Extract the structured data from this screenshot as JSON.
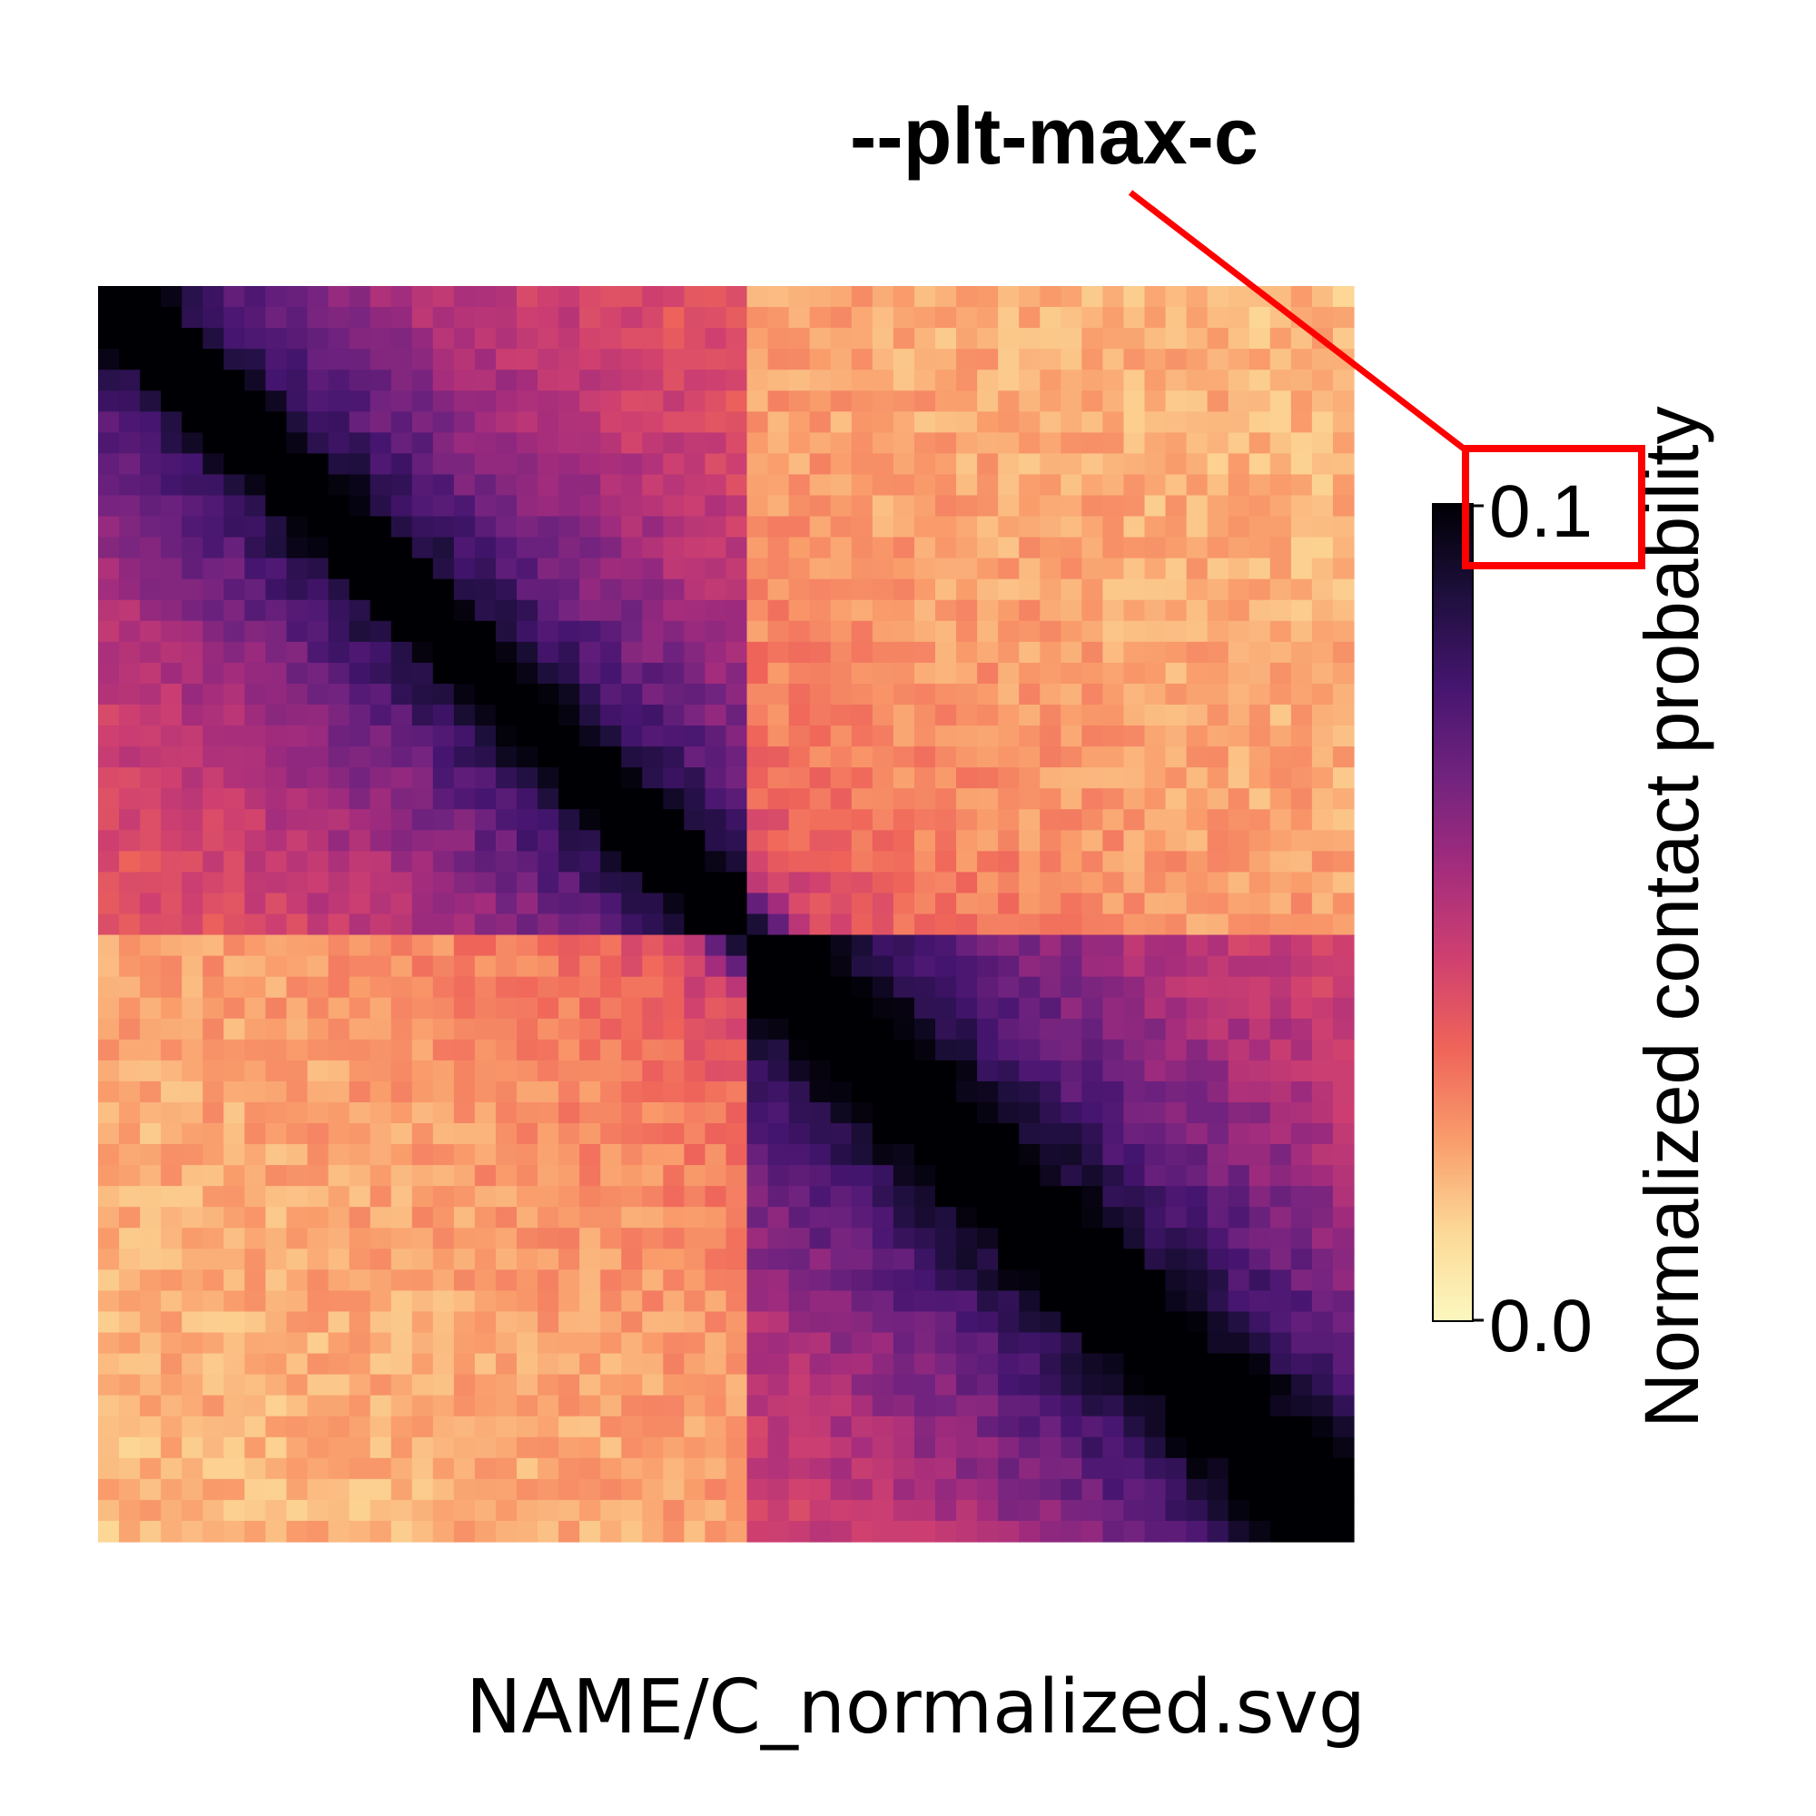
{
  "chart_data": {
    "type": "heatmap",
    "title": "",
    "matrix_size": 60,
    "colormap": "magma_r",
    "colormap_stops": [
      "#fcf8bf",
      "#fcd896",
      "#f99c6b",
      "#ef6459",
      "#cf4070",
      "#a32c7d",
      "#71237f",
      "#45156f",
      "#1e0f3d",
      "#000004"
    ],
    "value_range": [
      0.0,
      0.1
    ],
    "domains": [
      {
        "start": 0,
        "end": 31,
        "strength": 0.045
      },
      {
        "start": 31,
        "end": 60,
        "strength": 0.055
      }
    ],
    "diagonal_value": 0.1,
    "colorbar": {
      "label": "Normalized contact probability",
      "ticks": [
        "0.0",
        "0.1"
      ]
    },
    "annotation": {
      "text": "--plt-max-c",
      "highlight": "0.1",
      "color": "#ff0000"
    }
  },
  "caption": "NAME/C_normalized.svg"
}
